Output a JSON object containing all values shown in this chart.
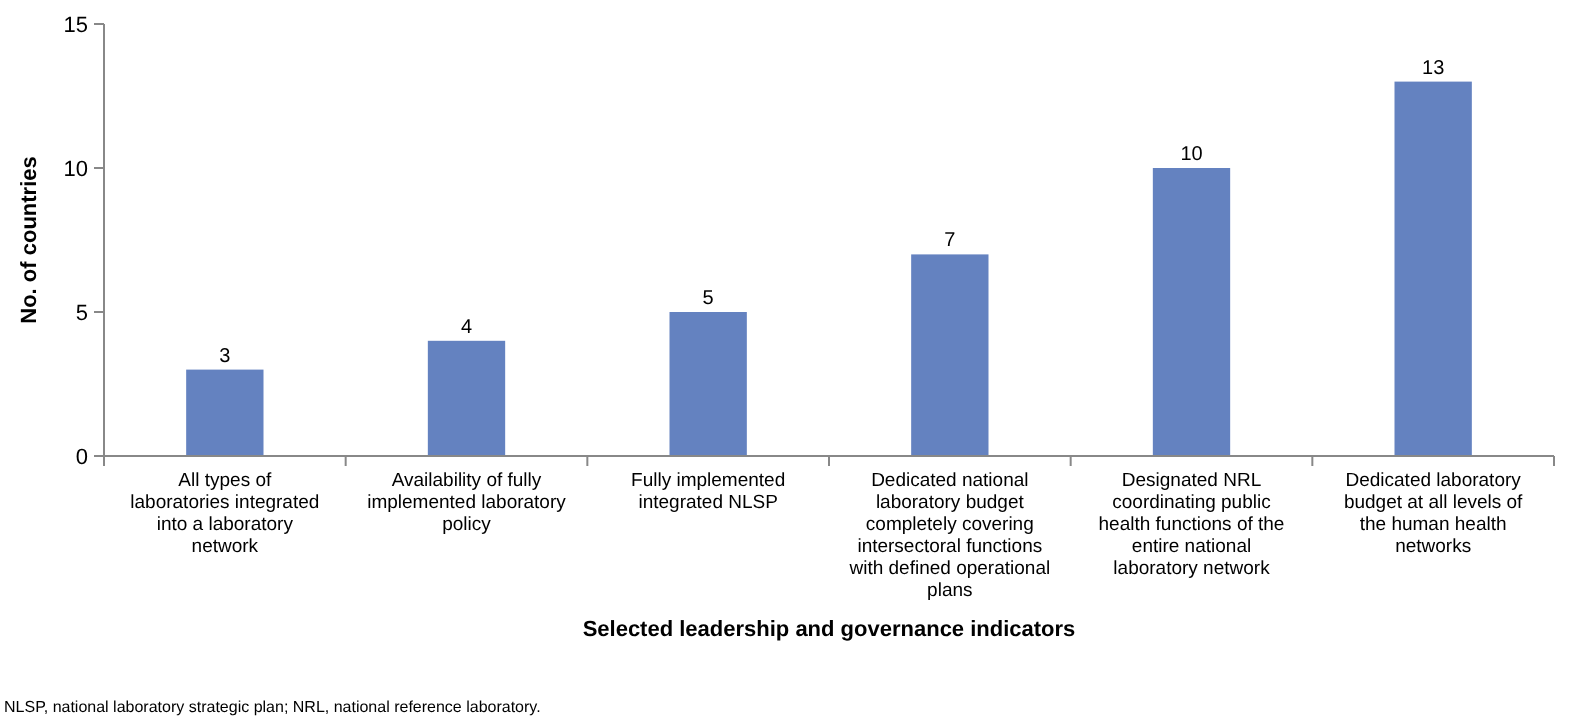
{
  "chart_data": {
    "type": "bar",
    "xlabel": "Selected leadership and governance indicators",
    "ylabel": "No. of countries",
    "categories": [
      "All types of laboratories integrated into a laboratory network",
      "Availability of fully implemented laboratory policy",
      "Fully implemented integrated NLSP",
      "Dedicated national laboratory budget completely covering intersectoral functions with defined operational plans",
      "Designated NRL coordinating public health functions of the entire national laboratory network",
      "Dedicated laboratory budget at all levels of the human health networks"
    ],
    "values": [
      3,
      4,
      5,
      7,
      10,
      13
    ],
    "color": "#6482c0",
    "ylim": [
      0,
      15
    ],
    "yticks": [
      0,
      5,
      10,
      15
    ],
    "grid": false,
    "data_labels": true,
    "annotations": [
      "NLSP, national laboratory strategic plan; NRL, national reference laboratory."
    ]
  }
}
